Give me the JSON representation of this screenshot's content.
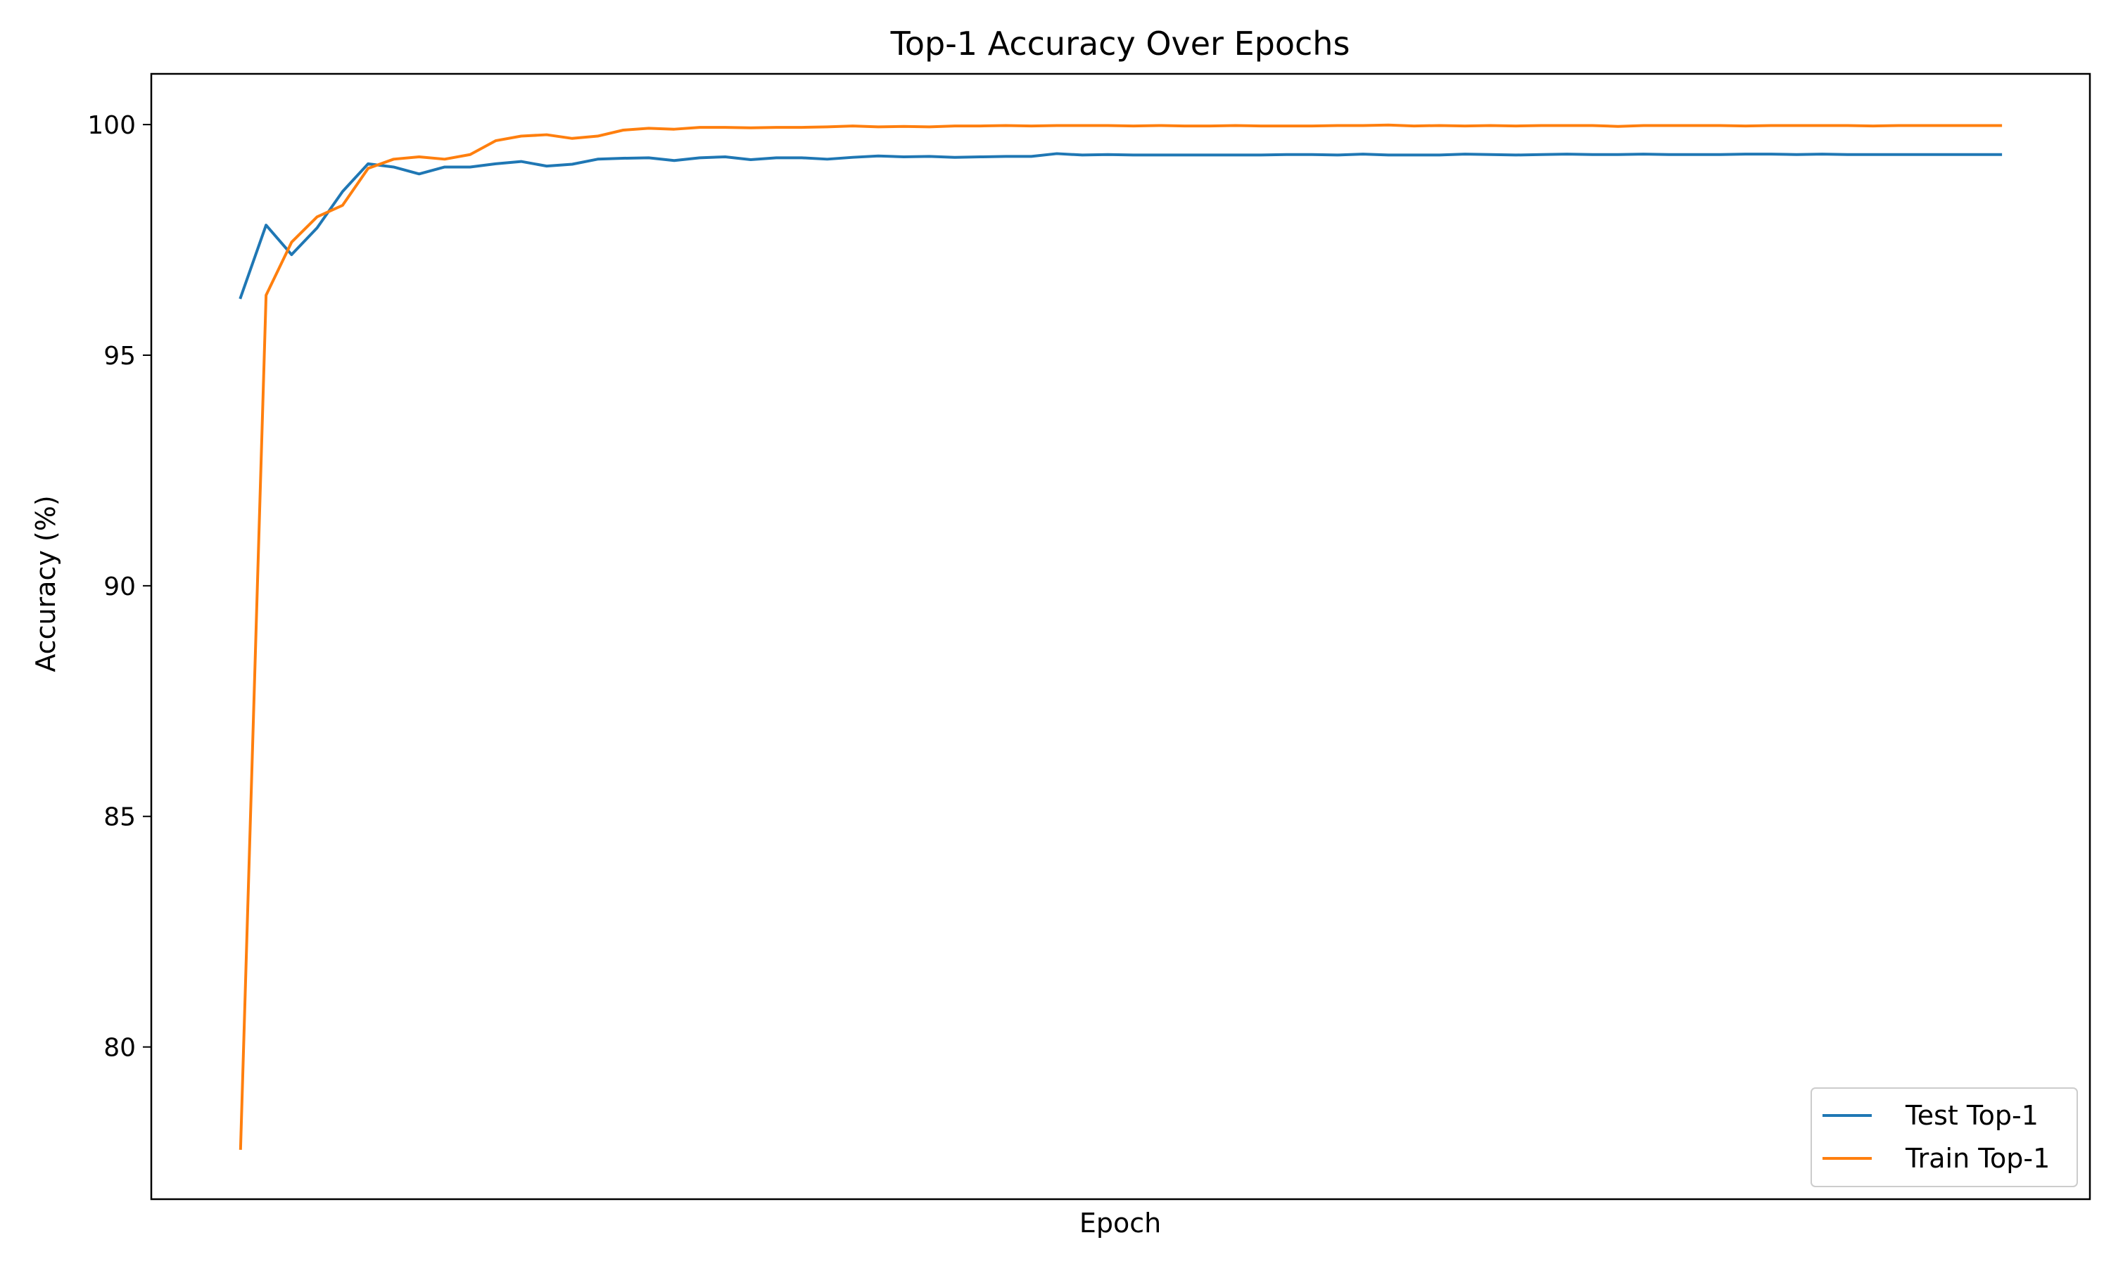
{
  "chart_data": {
    "type": "line",
    "title": "Top-1 Accuracy Over Epochs",
    "xlabel": "Epoch",
    "ylabel": "Accuracy (%)",
    "xlim": [
      -2.5,
      73.5
    ],
    "ylim": [
      76.7,
      101.1
    ],
    "yticks": [
      80,
      85,
      90,
      95,
      100
    ],
    "xticks_visible": false,
    "grid": false,
    "legend_position": "lower-right",
    "x": [
      1,
      2,
      3,
      4,
      5,
      6,
      7,
      8,
      9,
      10,
      11,
      12,
      13,
      14,
      15,
      16,
      17,
      18,
      19,
      20,
      21,
      22,
      23,
      24,
      25,
      26,
      27,
      28,
      29,
      30,
      31,
      32,
      33,
      34,
      35,
      36,
      37,
      38,
      39,
      40,
      41,
      42,
      43,
      44,
      45,
      46,
      47,
      48,
      49,
      50,
      51,
      52,
      53,
      54,
      55,
      56,
      57,
      58,
      59,
      60,
      61,
      62,
      63,
      64,
      65,
      66,
      67,
      68,
      69,
      70
    ],
    "series": [
      {
        "name": "Test Top-1",
        "color": "#1f77b4",
        "values": [
          96.25,
          97.82,
          97.18,
          97.76,
          98.55,
          99.15,
          99.08,
          98.93,
          99.08,
          99.08,
          99.15,
          99.2,
          99.1,
          99.14,
          99.25,
          99.27,
          99.28,
          99.22,
          99.28,
          99.3,
          99.24,
          99.28,
          99.28,
          99.25,
          99.29,
          99.32,
          99.3,
          99.31,
          99.29,
          99.3,
          99.31,
          99.31,
          99.37,
          99.34,
          99.35,
          99.34,
          99.34,
          99.34,
          99.34,
          99.34,
          99.34,
          99.35,
          99.35,
          99.34,
          99.36,
          99.34,
          99.34,
          99.34,
          99.36,
          99.35,
          99.34,
          99.35,
          99.36,
          99.35,
          99.35,
          99.36,
          99.35,
          99.35,
          99.35,
          99.36,
          99.36,
          99.35,
          99.36,
          99.35,
          99.35,
          99.35,
          99.35,
          99.35,
          99.35,
          99.35
        ]
      },
      {
        "name": "Train Top-1",
        "color": "#ff7f0e",
        "values": [
          77.8,
          96.3,
          97.45,
          98.0,
          98.25,
          99.05,
          99.25,
          99.3,
          99.25,
          99.35,
          99.65,
          99.75,
          99.78,
          99.7,
          99.75,
          99.88,
          99.92,
          99.9,
          99.94,
          99.94,
          99.93,
          99.94,
          99.94,
          99.95,
          99.97,
          99.95,
          99.96,
          99.95,
          99.97,
          99.97,
          99.98,
          99.97,
          99.98,
          99.98,
          99.98,
          99.97,
          99.98,
          99.97,
          99.97,
          99.98,
          99.97,
          99.97,
          99.97,
          99.98,
          99.98,
          99.99,
          99.97,
          99.98,
          99.97,
          99.98,
          99.97,
          99.98,
          99.98,
          99.98,
          99.96,
          99.98,
          99.98,
          99.98,
          99.98,
          99.97,
          99.98,
          99.98,
          99.98,
          99.98,
          99.97,
          99.98,
          99.98,
          99.98,
          99.98,
          99.98
        ]
      }
    ]
  }
}
